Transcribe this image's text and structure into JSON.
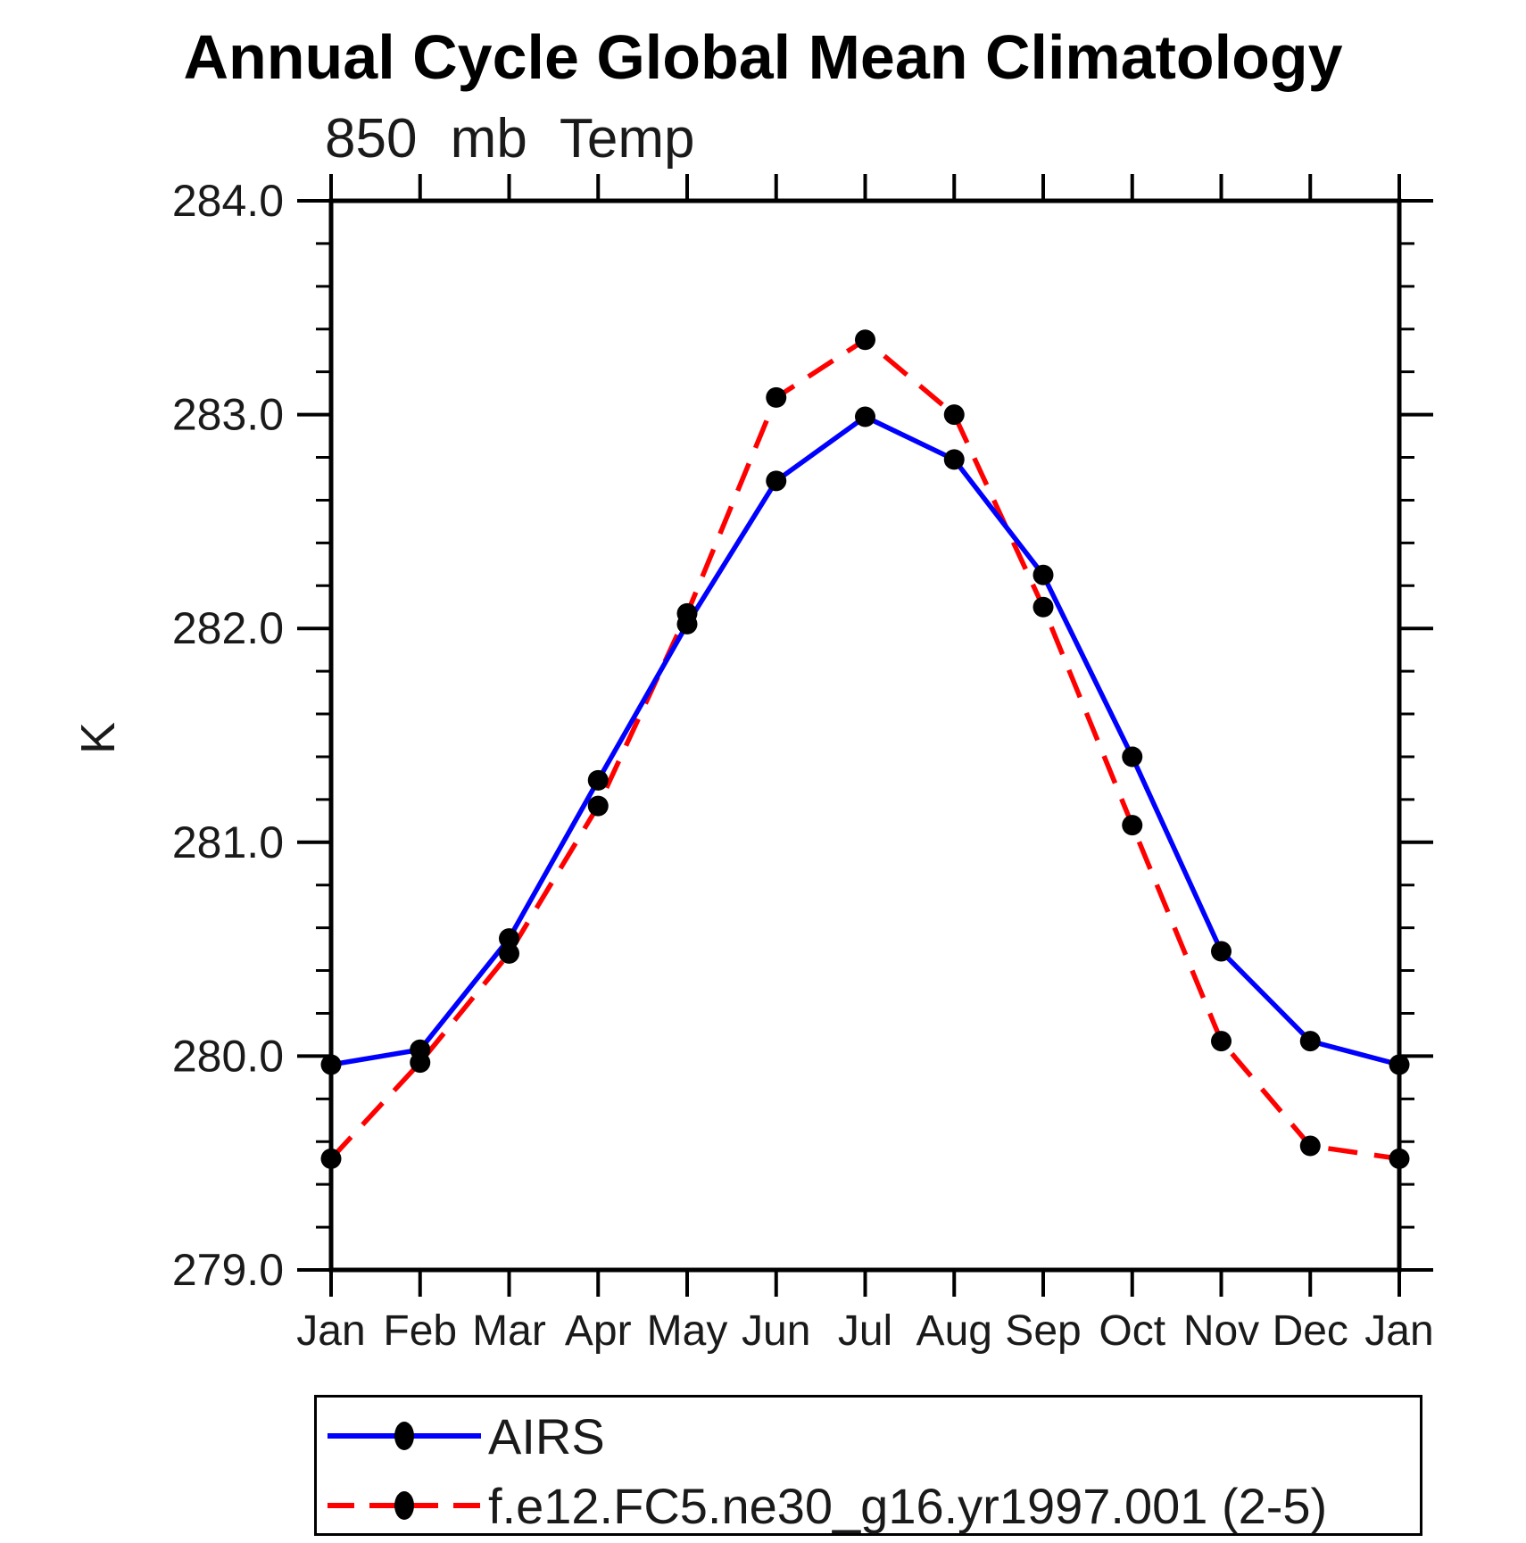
{
  "chart_data": {
    "type": "line",
    "title": "Annual Cycle Global Mean Climatology",
    "subtitle": "850 mb Temp",
    "ylabel": "K",
    "ylim": [
      279.0,
      284.0
    ],
    "ytick_labels": [
      "279.0",
      "280.0",
      "281.0",
      "282.0",
      "283.0",
      "284.0"
    ],
    "ytick_values": [
      279.0,
      280.0,
      281.0,
      282.0,
      283.0,
      284.0
    ],
    "ytick_minor_step": 0.2,
    "grid": false,
    "categories": [
      "Jan",
      "Feb",
      "Mar",
      "Apr",
      "May",
      "Jun",
      "Jul",
      "Aug",
      "Sep",
      "Oct",
      "Nov",
      "Dec",
      "Jan"
    ],
    "series": [
      {
        "name": "AIRS",
        "color": "#0000ff",
        "line_style": "solid",
        "marker_color": "#000000",
        "values": [
          279.96,
          280.03,
          280.55,
          281.29,
          282.02,
          282.69,
          282.99,
          282.79,
          282.25,
          281.4,
          280.49,
          280.07,
          279.96
        ]
      },
      {
        "name": "f.e12.FC5.ne30_g16.yr1997.001 (2-5)",
        "color": "#ff0000",
        "line_style": "dashed",
        "marker_color": "#000000",
        "values": [
          279.52,
          279.97,
          280.48,
          281.17,
          282.07,
          283.08,
          283.35,
          283.0,
          282.1,
          281.08,
          280.07,
          279.58,
          279.52
        ]
      }
    ],
    "legend_position": "bottom-left"
  },
  "colors": {
    "frame": "#000000",
    "background": "#ffffff",
    "text": "#1a1a1a"
  }
}
